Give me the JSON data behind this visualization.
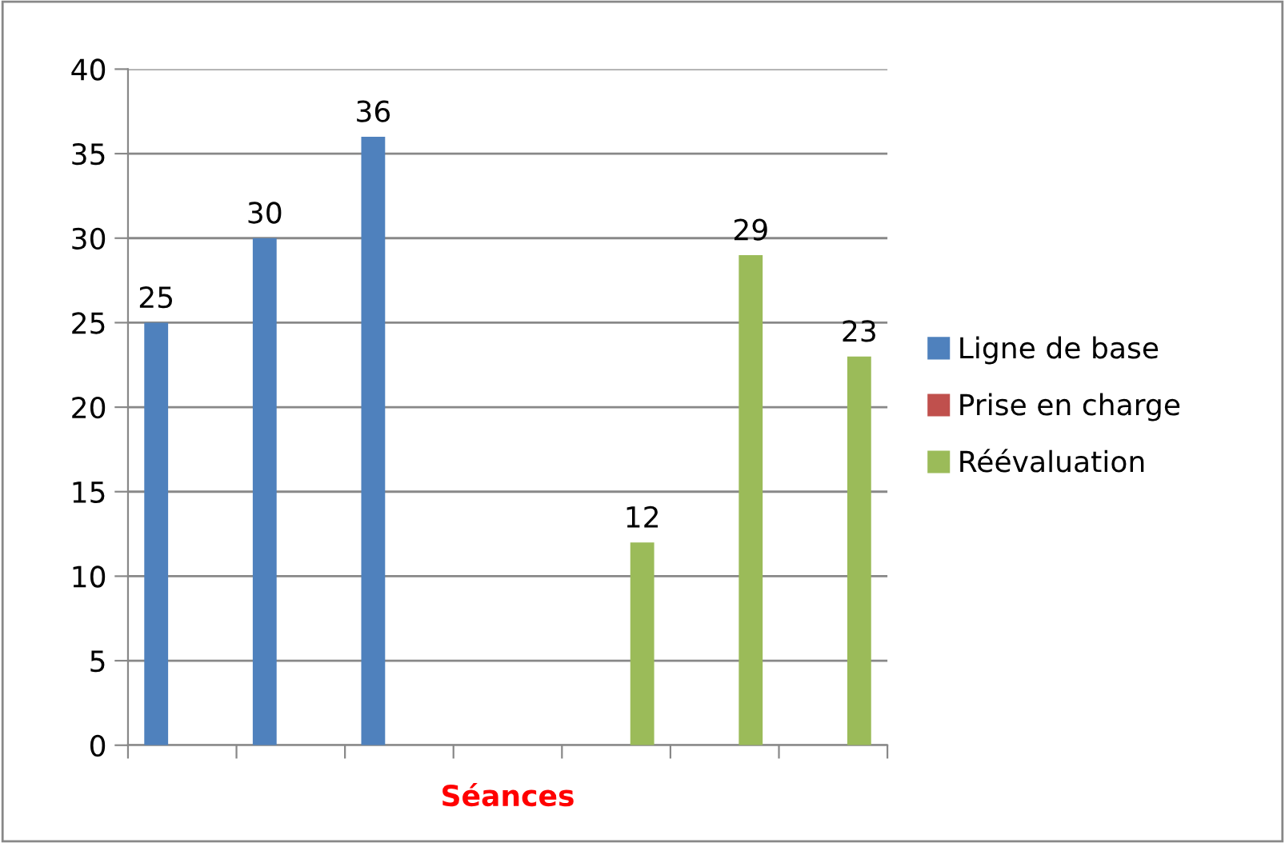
{
  "chart_data": {
    "type": "bar",
    "xlabel": "Séances",
    "categories": [
      null,
      null,
      null,
      null,
      null,
      null,
      null
    ],
    "series": [
      {
        "name": "Ligne de base",
        "color": "#4f81bd",
        "values": [
          25,
          30,
          36,
          null,
          null,
          null,
          null
        ]
      },
      {
        "name": "Prise en charge",
        "color": "#c0504d",
        "values": [
          null,
          null,
          null,
          null,
          null,
          null,
          null
        ]
      },
      {
        "name": "Réévaluation",
        "color": "#9bbb59",
        "values": [
          null,
          null,
          null,
          null,
          12,
          29,
          23
        ]
      }
    ],
    "ylim": [
      0,
      40
    ],
    "yticks": [
      0,
      5,
      10,
      15,
      20,
      25,
      30,
      35,
      40
    ],
    "grid": "y",
    "legend": "right",
    "data_labels": true
  }
}
